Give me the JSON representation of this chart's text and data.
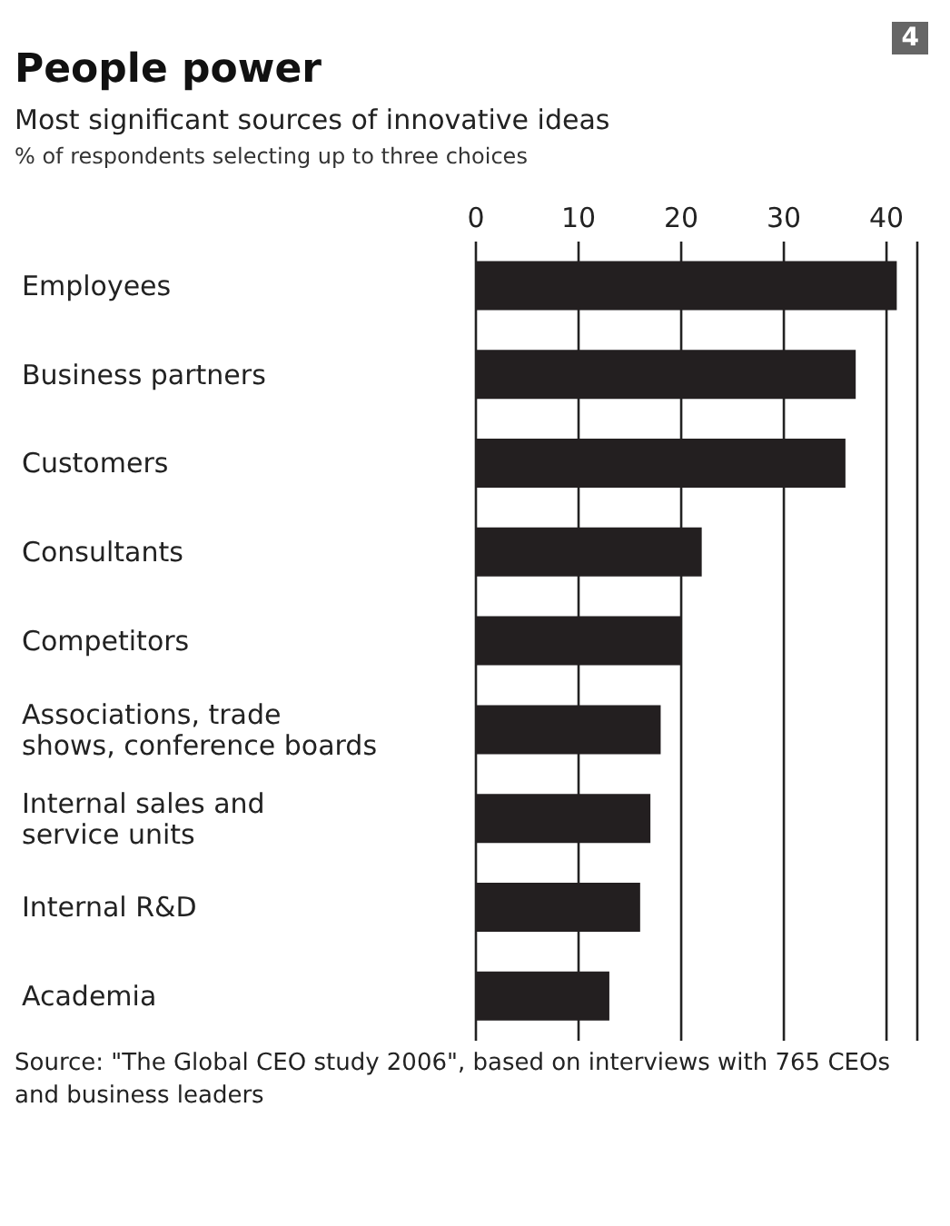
{
  "chart_data": {
    "type": "bar",
    "orientation": "horizontal",
    "title": "People power",
    "subtitle": "Most significant sources of innovative ideas",
    "xlabel": "% of respondents selecting up to three choices",
    "categories": [
      "Employees",
      "Business partners",
      "Customers",
      "Consultants",
      "Competitors",
      "Associations, trade shows, conference boards",
      "Internal sales and service units",
      "Internal R&D",
      "Academia"
    ],
    "values": [
      41,
      37,
      36,
      22,
      20,
      18,
      17,
      16,
      13
    ],
    "color": "#231f20",
    "xlim": [
      0,
      43
    ],
    "xticks": [
      0,
      10,
      20,
      30,
      40
    ],
    "grid": "x",
    "annotations": [
      "4",
      "Source: \"The Global CEO study 2006\", based on interviews with 765 CEOs and business leaders"
    ]
  }
}
